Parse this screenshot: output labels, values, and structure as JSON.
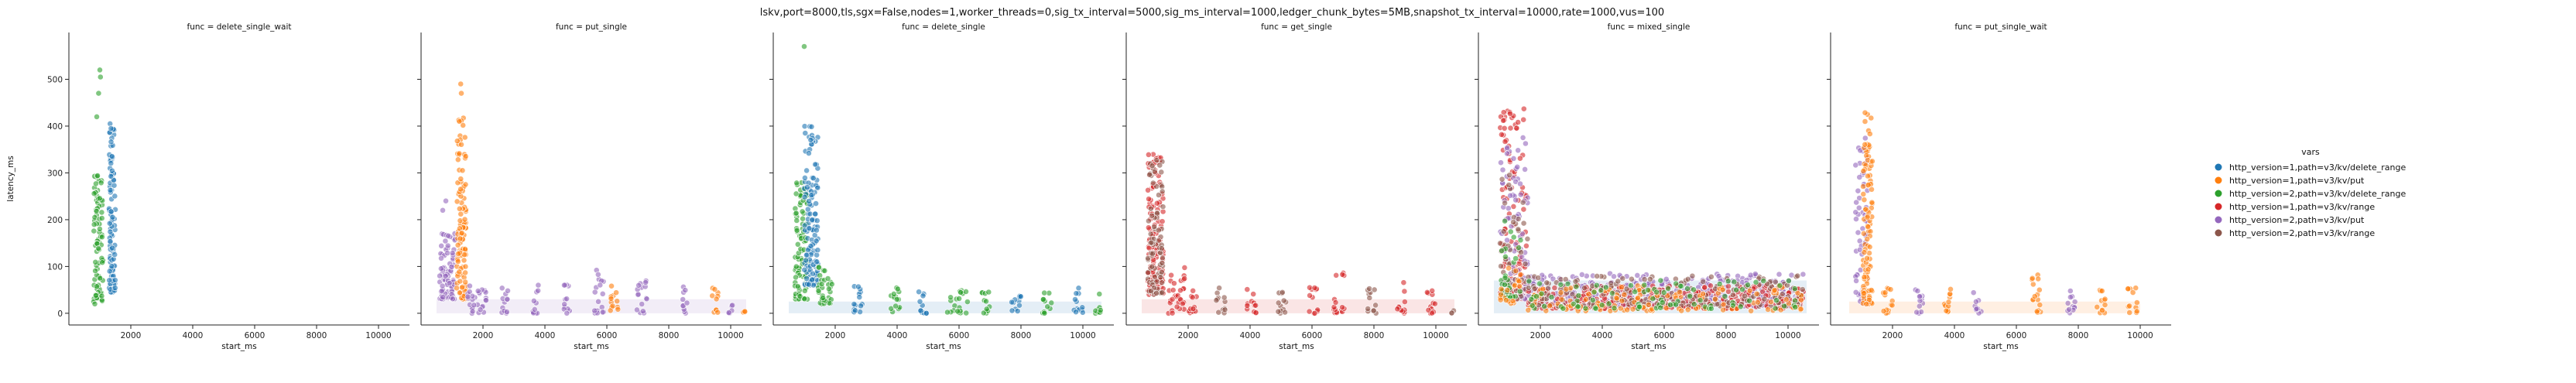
{
  "chart_data": {
    "type": "scatter",
    "title": "lskv,port=8000,tls,sgx=False,nodes=1,worker_threads=0,sig_tx_interval=5000,sig_ms_interval=1000,ledger_chunk_bytes=5MB,snapshot_tx_interval=10000,rate=1000,vus=100",
    "xlabel": "start_ms",
    "ylabel": "latency_ms",
    "xlim": [
      0,
      11000
    ],
    "ylim": [
      -25,
      600
    ],
    "xticks": [
      2000,
      4000,
      6000,
      8000,
      10000
    ],
    "yticks": [
      0,
      100,
      200,
      300,
      400,
      500
    ],
    "grid": false,
    "legend": {
      "title": "vars",
      "placement": "right",
      "entries": [
        {
          "name": "http_version=1,path=v3/kv/delete_range",
          "color": "#1f77b4"
        },
        {
          "name": "http_version=1,path=v3/kv/put",
          "color": "#ff7f0e"
        },
        {
          "name": "http_version=2,path=v3/kv/delete_range",
          "color": "#2ca02c"
        },
        {
          "name": "http_version=1,path=v3/kv/range",
          "color": "#d62728"
        },
        {
          "name": "http_version=2,path=v3/kv/put",
          "color": "#9467bd"
        },
        {
          "name": "http_version=2,path=v3/kv/range",
          "color": "#8c564b"
        }
      ]
    },
    "panels": [
      {
        "title": "func = delete_single_wait",
        "clusters": [
          {
            "series": 2,
            "x": [
              800,
              1100
            ],
            "y": [
              20,
              300
            ],
            "n": 90,
            "outliers": [
              [
                1000,
                520
              ],
              [
                1020,
                505
              ],
              [
                960,
                470
              ],
              [
                900,
                420
              ]
            ]
          },
          {
            "series": 0,
            "x": [
              1300,
              1500
            ],
            "y": [
              45,
              400
            ],
            "n": 110,
            "outliers": [
              [
                1330,
                405
              ],
              [
                1360,
                395
              ]
            ]
          }
        ]
      },
      {
        "title": "func = put_single",
        "clusters": [
          {
            "series": 4,
            "x": [
              600,
              1100
            ],
            "y": [
              30,
              180
            ],
            "n": 90,
            "outliers": [
              [
                700,
                220
              ],
              [
                800,
                240
              ]
            ]
          },
          {
            "series": 1,
            "x": [
              1150,
              1450
            ],
            "y": [
              30,
              420
            ],
            "n": 110,
            "outliers": [
              [
                1280,
                490
              ],
              [
                1300,
                470
              ]
            ]
          },
          {
            "series": 4,
            "x": [
              1500,
              2100
            ],
            "y": [
              0,
              60
            ],
            "n": 30
          },
          {
            "series": 4,
            "x": [
              2600,
              2800
            ],
            "y": [
              0,
              60
            ],
            "n": 12
          },
          {
            "series": 4,
            "x": [
              3600,
              3800
            ],
            "y": [
              0,
              60
            ],
            "n": 12
          },
          {
            "series": 4,
            "x": [
              4600,
              4800
            ],
            "y": [
              0,
              65
            ],
            "n": 12
          },
          {
            "series": 4,
            "x": [
              5600,
              5900
            ],
            "y": [
              0,
              95
            ],
            "n": 18
          },
          {
            "series": 1,
            "x": [
              6100,
              6400
            ],
            "y": [
              0,
              70
            ],
            "n": 12
          },
          {
            "series": 4,
            "x": [
              6900,
              7300
            ],
            "y": [
              0,
              70
            ],
            "n": 16
          },
          {
            "series": 4,
            "x": [
              8400,
              8600
            ],
            "y": [
              0,
              60
            ],
            "n": 10
          },
          {
            "series": 1,
            "x": [
              9400,
              9600
            ],
            "y": [
              0,
              60
            ],
            "n": 10
          },
          {
            "series": 4,
            "x": [
              9900,
              10100
            ],
            "y": [
              0,
              35
            ],
            "n": 6
          },
          {
            "series": 1,
            "x": [
              10400,
              10500
            ],
            "y": [
              0,
              10
            ],
            "n": 3
          }
        ],
        "band": {
          "x": [
            500,
            10500
          ],
          "y": [
            0,
            30
          ],
          "color": "#9467bd"
        }
      },
      {
        "title": "func = delete_single",
        "clusters": [
          {
            "series": 2,
            "x": [
              700,
              1100
            ],
            "y": [
              30,
              280
            ],
            "n": 90,
            "outliers": [
              [
                1000,
                570
              ]
            ]
          },
          {
            "series": 0,
            "x": [
              1000,
              1450
            ],
            "y": [
              60,
              400
            ],
            "n": 130
          },
          {
            "series": 2,
            "x": [
              1450,
              1900
            ],
            "y": [
              20,
              100
            ],
            "n": 35
          },
          {
            "series": 0,
            "x": [
              2600,
              2900
            ],
            "y": [
              0,
              60
            ],
            "n": 14
          },
          {
            "series": 2,
            "x": [
              3800,
              4100
            ],
            "y": [
              0,
              55
            ],
            "n": 14
          },
          {
            "series": 0,
            "x": [
              4700,
              5000
            ],
            "y": [
              0,
              50
            ],
            "n": 12
          },
          {
            "series": 2,
            "x": [
              5600,
              6300
            ],
            "y": [
              0,
              55
            ],
            "n": 22
          },
          {
            "series": 2,
            "x": [
              6700,
              7000
            ],
            "y": [
              0,
              50
            ],
            "n": 12
          },
          {
            "series": 0,
            "x": [
              7700,
              8000
            ],
            "y": [
              0,
              50
            ],
            "n": 12
          },
          {
            "series": 2,
            "x": [
              8700,
              9000
            ],
            "y": [
              0,
              50
            ],
            "n": 12
          },
          {
            "series": 0,
            "x": [
              9700,
              10000
            ],
            "y": [
              0,
              55
            ],
            "n": 12
          },
          {
            "series": 2,
            "x": [
              10400,
              10600
            ],
            "y": [
              0,
              50
            ],
            "n": 10
          }
        ],
        "band": {
          "x": [
            500,
            10600
          ],
          "y": [
            0,
            25
          ],
          "color": "#1f77b4"
        }
      },
      {
        "title": "func = get_single",
        "clusters": [
          {
            "series": 3,
            "x": [
              700,
              1200
            ],
            "y": [
              40,
              340
            ],
            "n": 140
          },
          {
            "series": 5,
            "x": [
              700,
              1200
            ],
            "y": [
              40,
              330
            ],
            "n": 80
          },
          {
            "series": 3,
            "x": [
              1300,
              1900
            ],
            "y": [
              0,
              100
            ],
            "n": 30
          },
          {
            "series": 3,
            "x": [
              2000,
              2300
            ],
            "y": [
              0,
              55
            ],
            "n": 12
          },
          {
            "series": 5,
            "x": [
              2900,
              3200
            ],
            "y": [
              0,
              55
            ],
            "n": 12
          },
          {
            "series": 3,
            "x": [
              3900,
              4200
            ],
            "y": [
              0,
              60
            ],
            "n": 12
          },
          {
            "series": 5,
            "x": [
              4900,
              5200
            ],
            "y": [
              0,
              55
            ],
            "n": 12
          },
          {
            "series": 3,
            "x": [
              5900,
              6200
            ],
            "y": [
              0,
              60
            ],
            "n": 12
          },
          {
            "series": 3,
            "x": [
              6700,
              7100
            ],
            "y": [
              0,
              90
            ],
            "n": 16
          },
          {
            "series": 5,
            "x": [
              7800,
              8100
            ],
            "y": [
              0,
              55
            ],
            "n": 12
          },
          {
            "series": 3,
            "x": [
              8700,
              9000
            ],
            "y": [
              0,
              70
            ],
            "n": 12
          },
          {
            "series": 3,
            "x": [
              9700,
              10000
            ],
            "y": [
              0,
              60
            ],
            "n": 12
          },
          {
            "series": 5,
            "x": [
              10500,
              10600
            ],
            "y": [
              0,
              10
            ],
            "n": 3
          }
        ],
        "band": {
          "x": [
            500,
            10600
          ],
          "y": [
            0,
            30
          ],
          "color": "#d62728"
        }
      },
      {
        "title": "func = mixed_single",
        "clusters": [
          {
            "series": 3,
            "x": [
              700,
              1600
            ],
            "y": [
              30,
              440
            ],
            "n": 110
          },
          {
            "series": 4,
            "x": [
              700,
              1600
            ],
            "y": [
              30,
              380
            ],
            "n": 80
          },
          {
            "series": 5,
            "x": [
              700,
              1600
            ],
            "y": [
              30,
              300
            ],
            "n": 50
          },
          {
            "series": 2,
            "x": [
              700,
              1400
            ],
            "y": [
              30,
              200
            ],
            "n": 30
          },
          {
            "series": 1,
            "x": [
              700,
              1400
            ],
            "y": [
              20,
              120
            ],
            "n": 20
          },
          {
            "series": 4,
            "x": [
              1600,
              10500
            ],
            "y": [
              15,
              85
            ],
            "n": 420
          },
          {
            "series": 3,
            "x": [
              1600,
              10500
            ],
            "y": [
              10,
              60
            ],
            "n": 280
          },
          {
            "series": 5,
            "x": [
              1600,
              10500
            ],
            "y": [
              15,
              80
            ],
            "n": 200
          },
          {
            "series": 1,
            "x": [
              1600,
              10500
            ],
            "y": [
              5,
              60
            ],
            "n": 120
          },
          {
            "series": 2,
            "x": [
              1600,
              10500
            ],
            "y": [
              10,
              70
            ],
            "n": 90
          }
        ],
        "band": {
          "x": [
            500,
            10600
          ],
          "y": [
            0,
            70
          ],
          "color": "#1f77b4"
        }
      },
      {
        "title": "func = put_single_wait",
        "clusters": [
          {
            "series": 4,
            "x": [
              800,
              1200
            ],
            "y": [
              20,
              380
            ],
            "n": 60
          },
          {
            "series": 1,
            "x": [
              1050,
              1350
            ],
            "y": [
              20,
              440
            ],
            "n": 110
          },
          {
            "series": 1,
            "x": [
              1700,
              2000
            ],
            "y": [
              0,
              55
            ],
            "n": 14
          },
          {
            "series": 4,
            "x": [
              2700,
              3000
            ],
            "y": [
              0,
              55
            ],
            "n": 12
          },
          {
            "series": 1,
            "x": [
              3600,
              3900
            ],
            "y": [
              0,
              60
            ],
            "n": 12
          },
          {
            "series": 4,
            "x": [
              4600,
              4900
            ],
            "y": [
              0,
              45
            ],
            "n": 10
          },
          {
            "series": 1,
            "x": [
              6500,
              6800
            ],
            "y": [
              0,
              85
            ],
            "n": 16
          },
          {
            "series": 4,
            "x": [
              7600,
              7900
            ],
            "y": [
              0,
              55
            ],
            "n": 12
          },
          {
            "series": 1,
            "x": [
              8600,
              8900
            ],
            "y": [
              0,
              60
            ],
            "n": 12
          },
          {
            "series": 1,
            "x": [
              9600,
              9900
            ],
            "y": [
              0,
              60
            ],
            "n": 12
          }
        ],
        "band": {
          "x": [
            600,
            10000
          ],
          "y": [
            0,
            25
          ],
          "color": "#ff7f0e"
        }
      }
    ]
  }
}
